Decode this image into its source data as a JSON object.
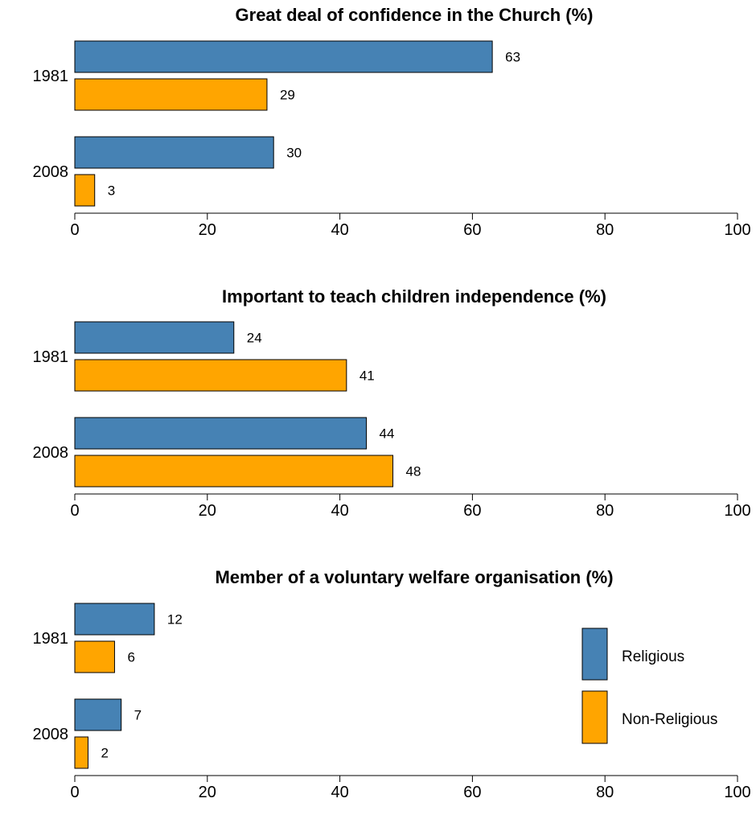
{
  "chart_data": [
    {
      "type": "bar",
      "orientation": "horizontal",
      "title": "Great deal of confidence in the Church (%)",
      "categories": [
        "1981",
        "2008"
      ],
      "series": [
        {
          "name": "Religious",
          "values": [
            63,
            30
          ]
        },
        {
          "name": "Non-Religious",
          "values": [
            29,
            3
          ]
        }
      ],
      "xlim": [
        0,
        100
      ],
      "xticks": [
        0,
        20,
        40,
        60,
        80,
        100
      ],
      "xlabel": "",
      "ylabel": ""
    },
    {
      "type": "bar",
      "orientation": "horizontal",
      "title": "Important to teach children independence (%)",
      "categories": [
        "1981",
        "2008"
      ],
      "series": [
        {
          "name": "Religious",
          "values": [
            24,
            44
          ]
        },
        {
          "name": "Non-Religious",
          "values": [
            41,
            48
          ]
        }
      ],
      "xlim": [
        0,
        100
      ],
      "xticks": [
        0,
        20,
        40,
        60,
        80,
        100
      ],
      "xlabel": "",
      "ylabel": ""
    },
    {
      "type": "bar",
      "orientation": "horizontal",
      "title": "Member of a voluntary welfare organisation (%)",
      "categories": [
        "1981",
        "2008"
      ],
      "series": [
        {
          "name": "Religious",
          "values": [
            12,
            7
          ]
        },
        {
          "name": "Non-Religious",
          "values": [
            6,
            2
          ]
        }
      ],
      "xlim": [
        0,
        100
      ],
      "xticks": [
        0,
        20,
        40,
        60,
        80,
        100
      ],
      "xlabel": "",
      "ylabel": ""
    }
  ],
  "legend": {
    "placement": "bottom-right",
    "items": [
      {
        "label": "Religious",
        "color": "#4682B4"
      },
      {
        "label": "Non-Religious",
        "color": "#FFA500"
      }
    ]
  },
  "colors": {
    "Religious": "#4682B4",
    "Non-Religious": "#FFA500",
    "stroke": "#000000"
  }
}
